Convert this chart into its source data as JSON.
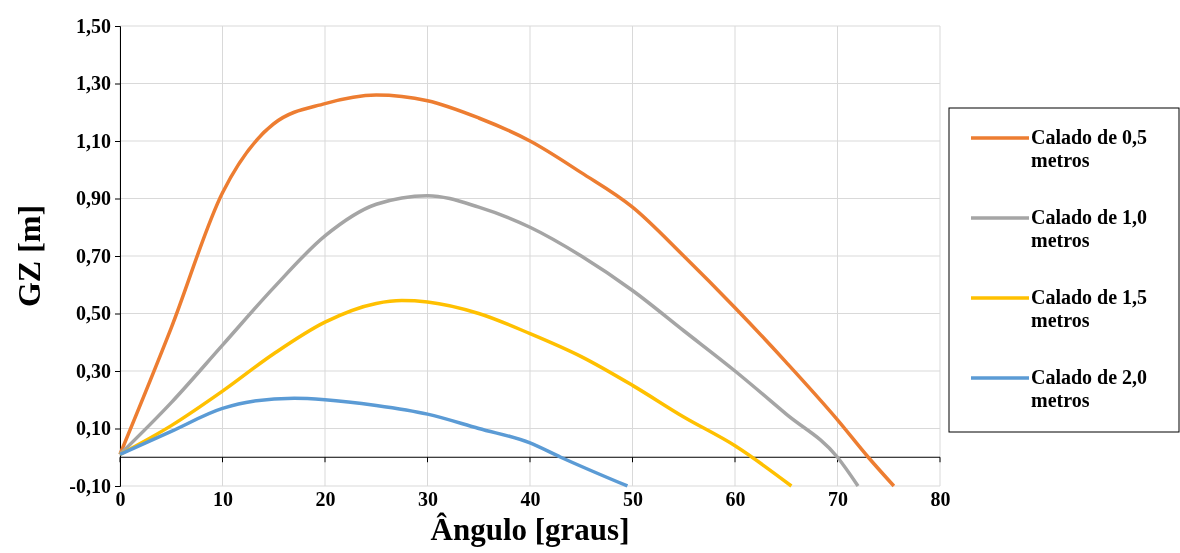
{
  "chart_data": {
    "type": "line",
    "xlabel": "Ângulo [graus]",
    "ylabel": "GZ [m]",
    "xlim": [
      0,
      80
    ],
    "xticks": [
      0,
      10,
      20,
      30,
      40,
      50,
      60,
      70,
      80
    ],
    "ylim": [
      -0.1,
      1.5
    ],
    "yticks": [
      {
        "value": -0.1,
        "label": "-0,10"
      },
      {
        "value": 0.1,
        "label": "0,10"
      },
      {
        "value": 0.3,
        "label": "0,30"
      },
      {
        "value": 0.5,
        "label": "0,50"
      },
      {
        "value": 0.7,
        "label": "0,70"
      },
      {
        "value": 0.9,
        "label": "0,90"
      },
      {
        "value": 1.1,
        "label": "1,10"
      },
      {
        "value": 1.3,
        "label": "1,30"
      },
      {
        "value": 1.5,
        "label": "1,50"
      }
    ],
    "grid": true,
    "legend": "right",
    "marker": "none",
    "line_style": "solid",
    "series": [
      {
        "name": "Calado de 0,5 metros",
        "color": "#ed7d31",
        "x": [
          0,
          5,
          10,
          15,
          20,
          25,
          30,
          35,
          40,
          45,
          50,
          55,
          60,
          65,
          70,
          73,
          75.5
        ],
        "values": [
          0.01,
          0.45,
          0.92,
          1.16,
          1.23,
          1.26,
          1.24,
          1.18,
          1.1,
          0.99,
          0.87,
          0.7,
          0.52,
          0.33,
          0.13,
          0.0,
          -0.1
        ]
      },
      {
        "name": "Calado de 1,0 metros",
        "color": "#a5a5a5",
        "x": [
          0,
          5,
          10,
          15,
          20,
          25,
          30,
          35,
          40,
          45,
          50,
          55,
          60,
          65,
          70,
          72
        ],
        "values": [
          0.01,
          0.19,
          0.39,
          0.59,
          0.77,
          0.88,
          0.91,
          0.87,
          0.8,
          0.7,
          0.58,
          0.44,
          0.3,
          0.15,
          0.0,
          -0.1
        ]
      },
      {
        "name": "Calado de 1,5 metros",
        "color": "#ffc000",
        "x": [
          0,
          5,
          10,
          15,
          20,
          25,
          27.5,
          30,
          35,
          40,
          45,
          50,
          55,
          60,
          65.5
        ],
        "values": [
          0.01,
          0.11,
          0.23,
          0.36,
          0.47,
          0.535,
          0.545,
          0.54,
          0.5,
          0.43,
          0.35,
          0.25,
          0.14,
          0.04,
          -0.1
        ]
      },
      {
        "name": "Calado de 2,0 metros",
        "color": "#5b9bd5",
        "x": [
          0,
          5,
          10,
          13,
          17,
          20,
          25,
          30,
          35,
          40,
          43,
          49.5
        ],
        "values": [
          0.01,
          0.09,
          0.17,
          0.195,
          0.205,
          0.2,
          0.18,
          0.15,
          0.1,
          0.05,
          0.0,
          -0.1
        ]
      }
    ]
  }
}
